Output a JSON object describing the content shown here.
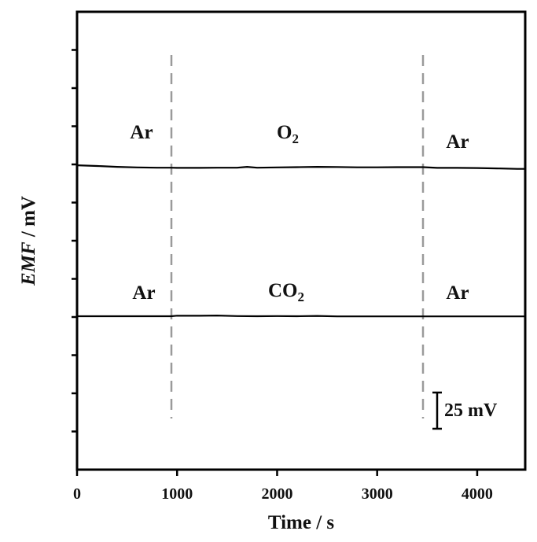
{
  "chart_data": {
    "type": "line",
    "title": "",
    "xlabel": "Time / s",
    "ylabel": "EMF / mV",
    "ylabel_italic_part": "EMF",
    "ylabel_rest": " / mV",
    "xlim": [
      0,
      4480
    ],
    "x_ticks": [
      0,
      1000,
      2000,
      3000,
      4000
    ],
    "x_tick_labels": [
      "0",
      "1000",
      "2000",
      "3000",
      "4000"
    ],
    "y_tick_count": 12,
    "y_tick_labels_shown": false,
    "grid": false,
    "legend": null,
    "scale_bar": {
      "label": "25 mV",
      "value_mV": 25
    },
    "gas_switch_times_s": [
      940,
      3460
    ],
    "series": [
      {
        "name": "O2 trace",
        "x": [
          0,
          200,
          400,
          600,
          800,
          940,
          1000,
          1200,
          1400,
          1600,
          1700,
          1800,
          2000,
          2200,
          2400,
          2600,
          2800,
          3000,
          3200,
          3400,
          3460,
          3600,
          3800,
          4000,
          4200,
          4400,
          4480
        ],
        "y_offset_mV": [
          0.5,
          0.0,
          -0.6,
          -1.0,
          -1.2,
          -1.2,
          -1.3,
          -1.3,
          -1.2,
          -1.2,
          -0.6,
          -1.2,
          -1.0,
          -0.8,
          -0.6,
          -0.7,
          -0.9,
          -0.9,
          -0.8,
          -0.8,
          -0.8,
          -1.3,
          -1.3,
          -1.4,
          -1.7,
          -2.0,
          -2.0
        ],
        "annotations": [
          {
            "label": "Ar",
            "x_range": [
              0,
              940
            ]
          },
          {
            "label": "O2",
            "x_range": [
              940,
              3460
            ]
          },
          {
            "label": "Ar",
            "x_range": [
              3460,
              4480
            ]
          }
        ]
      },
      {
        "name": "CO2 trace",
        "x": [
          0,
          200,
          400,
          600,
          800,
          940,
          1000,
          1200,
          1400,
          1600,
          1800,
          2000,
          2200,
          2400,
          2600,
          2800,
          3000,
          3200,
          3400,
          3460,
          3600,
          3800,
          4000,
          4200,
          4400,
          4480
        ],
        "y_offset_mV": [
          0.0,
          0.0,
          0.0,
          0.0,
          0.0,
          0.0,
          0.4,
          0.3,
          0.5,
          0.1,
          0.0,
          0.1,
          0.0,
          0.2,
          -0.1,
          -0.1,
          -0.1,
          -0.1,
          -0.1,
          -0.1,
          -0.1,
          -0.1,
          -0.1,
          -0.1,
          -0.1,
          -0.1
        ],
        "annotations": [
          {
            "label": "Ar",
            "x_range": [
              0,
              940
            ]
          },
          {
            "label": "CO2",
            "x_range": [
              940,
              3460
            ]
          },
          {
            "label": "Ar",
            "x_range": [
              3460,
              4480
            ]
          }
        ]
      }
    ]
  },
  "labels": {
    "top_left": "Ar",
    "top_mid_main": "O",
    "top_mid_sub": "2",
    "top_right": "Ar",
    "bottom_left": "Ar",
    "bottom_mid_main": "CO",
    "bottom_mid_sub": "2",
    "bottom_right": "Ar"
  },
  "colors": {
    "trace": "#000000",
    "axes": "#000000",
    "dashed_line": "#9a9a9a"
  }
}
